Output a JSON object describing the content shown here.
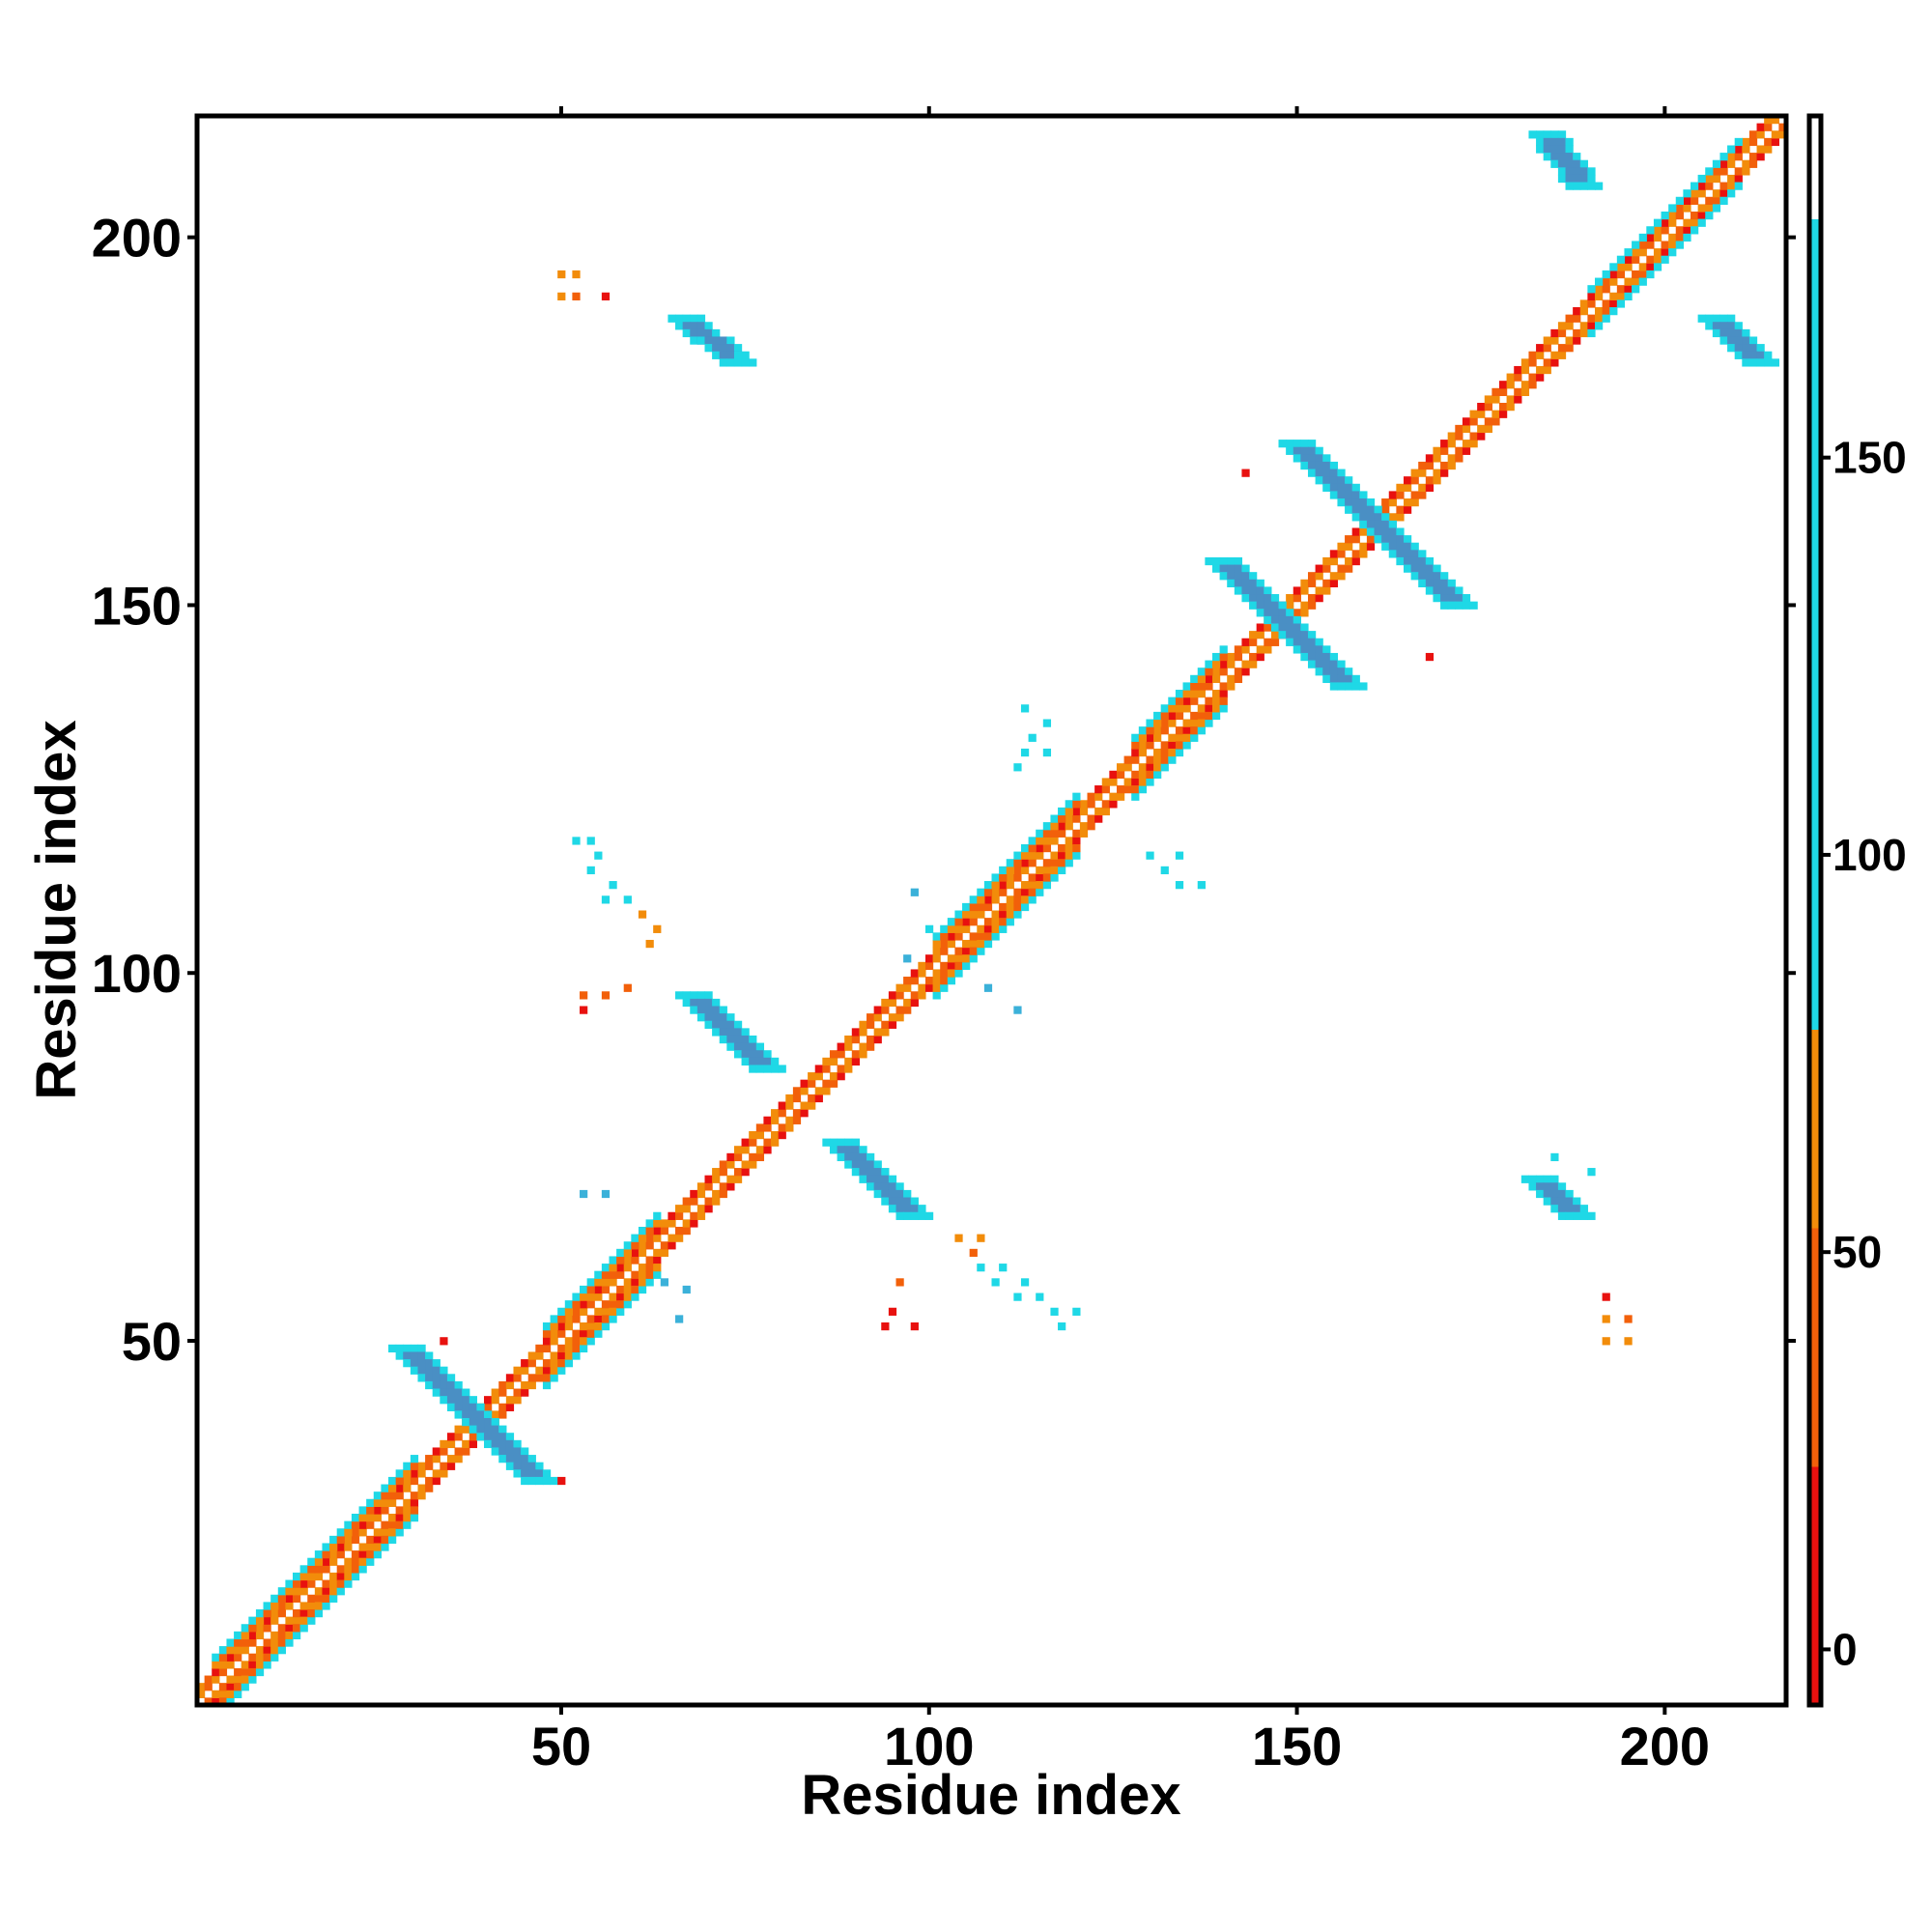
{
  "chart_data": {
    "type": "heatmap",
    "title": "",
    "xlabel": "Residue index",
    "ylabel": "Residue index",
    "xlim": [
      1,
      216
    ],
    "ylim": [
      1,
      216
    ],
    "x_ticks": [
      50,
      100,
      150,
      200
    ],
    "y_ticks": [
      50,
      100,
      150,
      200
    ],
    "x_tick_labels": [
      "50",
      "100",
      "150",
      "200"
    ],
    "y_tick_labels": [
      "50",
      "100",
      "150",
      "200"
    ],
    "colorbar": {
      "ticks": [
        0,
        50,
        100,
        150
      ],
      "tick_labels": [
        "0",
        "50",
        "100",
        "150"
      ],
      "range": [
        -7,
        193
      ],
      "bands": [
        {
          "from": -7,
          "to": 23,
          "color": "#e8110f"
        },
        {
          "from": 23,
          "to": 53,
          "color": "#f2600a"
        },
        {
          "from": 53,
          "to": 78,
          "color": "#f28c0a"
        },
        {
          "from": 78,
          "to": 180,
          "color": "#1fd8e6"
        },
        {
          "from": 180,
          "to": 193,
          "color": "#ffffff"
        }
      ],
      "gradient_colors": [
        "#e8110f",
        "#f2600a",
        "#f28c0a",
        "#1fd8e6",
        "#22c6e0",
        "#3bb1d9",
        "#4a8fc4",
        "#ffffff"
      ]
    },
    "colors": {
      "red": "#e8110f",
      "red_orange": "#f2600a",
      "orange": "#f28c0a",
      "cyan": "#1fd8e6",
      "steel_blue": "#4a8fc4"
    },
    "diagonal_band": {
      "start": 1,
      "end": 216,
      "half_width": 1.5
    },
    "helix_segments": [
      {
        "start": 3,
        "end": 30,
        "half_width": 3.5
      },
      {
        "start": 48,
        "end": 63,
        "half_width": 4
      },
      {
        "start": 101,
        "end": 120,
        "half_width": 4
      },
      {
        "start": 128,
        "end": 140,
        "half_width": 3.5
      },
      {
        "start": 190,
        "end": 210,
        "half_width": 3
      }
    ],
    "sheet_pairs": [
      {
        "x": [
          29,
          47
        ],
        "y": [
          49,
          31
        ],
        "half_width": 1.6,
        "color": "#4a8fc4",
        "edge_color": "#1fd8e6"
      },
      {
        "x": [
          68,
          78
        ],
        "y": [
          97,
          87
        ],
        "half_width": 1.6,
        "color": "#4a8fc4",
        "edge_color": "#1fd8e6"
      },
      {
        "x": [
          88,
          98
        ],
        "y": [
          77,
          67
        ],
        "half_width": 1.6,
        "color": "#4a8fc4",
        "edge_color": "#1fd8e6"
      },
      {
        "x": [
          140,
          157
        ],
        "y": [
          156,
          139
        ],
        "half_width": 1.6,
        "color": "#4a8fc4",
        "edge_color": "#1fd8e6"
      },
      {
        "x": [
          150,
          172
        ],
        "y": [
          172,
          150
        ],
        "half_width": 1.6,
        "color": "#4a8fc4",
        "edge_color": "#1fd8e6"
      },
      {
        "x": [
          67,
          74
        ],
        "y": [
          189,
          183
        ],
        "half_width": 1.4,
        "color": "#4a8fc4",
        "edge_color": "#1fd8e6"
      },
      {
        "x": [
          183,
          188
        ],
        "y": [
          72,
          67
        ],
        "half_width": 1.4,
        "color": "#4a8fc4",
        "edge_color": "#1fd8e6"
      },
      {
        "x": [
          184,
          189
        ],
        "y": [
          214,
          207
        ],
        "half_width": 1.4,
        "color": "#4a8fc4",
        "edge_color": "#1fd8e6"
      },
      {
        "x": [
          207,
          213
        ],
        "y": [
          189,
          183
        ],
        "half_width": 1.4,
        "color": "#4a8fc4",
        "edge_color": "#1fd8e6"
      }
    ],
    "scattered_contacts": [
      {
        "x": 50,
        "y": 195,
        "color": "#f28c0a"
      },
      {
        "x": 52,
        "y": 195,
        "color": "#f28c0a"
      },
      {
        "x": 50,
        "y": 192,
        "color": "#f28c0a"
      },
      {
        "x": 52,
        "y": 192,
        "color": "#f2600a"
      },
      {
        "x": 56,
        "y": 192,
        "color": "#e8110f"
      },
      {
        "x": 34,
        "y": 50,
        "color": "#e8110f"
      },
      {
        "x": 50,
        "y": 31,
        "color": "#e8110f"
      },
      {
        "x": 52,
        "y": 118,
        "color": "#1fd8e6"
      },
      {
        "x": 54,
        "y": 118,
        "color": "#1fd8e6"
      },
      {
        "x": 55,
        "y": 116,
        "color": "#1fd8e6"
      },
      {
        "x": 54,
        "y": 114,
        "color": "#1fd8e6"
      },
      {
        "x": 57,
        "y": 112,
        "color": "#1fd8e6"
      },
      {
        "x": 56,
        "y": 110,
        "color": "#1fd8e6"
      },
      {
        "x": 59,
        "y": 110,
        "color": "#1fd8e6"
      },
      {
        "x": 61,
        "y": 108,
        "color": "#f28c0a"
      },
      {
        "x": 63,
        "y": 106,
        "color": "#f28c0a"
      },
      {
        "x": 62,
        "y": 104,
        "color": "#f28c0a"
      },
      {
        "x": 53,
        "y": 97,
        "color": "#f2600a"
      },
      {
        "x": 56,
        "y": 97,
        "color": "#f2600a"
      },
      {
        "x": 59,
        "y": 98,
        "color": "#f2600a"
      },
      {
        "x": 53,
        "y": 95,
        "color": "#e8110f"
      },
      {
        "x": 53,
        "y": 70,
        "color": "#3bb1d9"
      },
      {
        "x": 56,
        "y": 70,
        "color": "#3bb1d9"
      },
      {
        "x": 64,
        "y": 58,
        "color": "#3bb1d9"
      },
      {
        "x": 67,
        "y": 57,
        "color": "#3bb1d9"
      },
      {
        "x": 66,
        "y": 53,
        "color": "#3bb1d9"
      },
      {
        "x": 104,
        "y": 64,
        "color": "#f28c0a"
      },
      {
        "x": 107,
        "y": 64,
        "color": "#f28c0a"
      },
      {
        "x": 106,
        "y": 62,
        "color": "#f2600a"
      },
      {
        "x": 107,
        "y": 60,
        "color": "#1fd8e6"
      },
      {
        "x": 110,
        "y": 60,
        "color": "#1fd8e6"
      },
      {
        "x": 109,
        "y": 58,
        "color": "#1fd8e6"
      },
      {
        "x": 113,
        "y": 58,
        "color": "#1fd8e6"
      },
      {
        "x": 112,
        "y": 56,
        "color": "#1fd8e6"
      },
      {
        "x": 115,
        "y": 56,
        "color": "#1fd8e6"
      },
      {
        "x": 117,
        "y": 54,
        "color": "#1fd8e6"
      },
      {
        "x": 120,
        "y": 54,
        "color": "#1fd8e6"
      },
      {
        "x": 118,
        "y": 52,
        "color": "#1fd8e6"
      },
      {
        "x": 96,
        "y": 58,
        "color": "#f2600a"
      },
      {
        "x": 95,
        "y": 54,
        "color": "#e8110f"
      },
      {
        "x": 98,
        "y": 52,
        "color": "#e8110f"
      },
      {
        "x": 94,
        "y": 52,
        "color": "#e8110f"
      },
      {
        "x": 112,
        "y": 128,
        "color": "#1fd8e6"
      },
      {
        "x": 113,
        "y": 130,
        "color": "#1fd8e6"
      },
      {
        "x": 116,
        "y": 130,
        "color": "#1fd8e6"
      },
      {
        "x": 114,
        "y": 132,
        "color": "#1fd8e6"
      },
      {
        "x": 116,
        "y": 134,
        "color": "#1fd8e6"
      },
      {
        "x": 113,
        "y": 136,
        "color": "#1fd8e6"
      },
      {
        "x": 130,
        "y": 116,
        "color": "#1fd8e6"
      },
      {
        "x": 134,
        "y": 116,
        "color": "#1fd8e6"
      },
      {
        "x": 132,
        "y": 114,
        "color": "#1fd8e6"
      },
      {
        "x": 134,
        "y": 112,
        "color": "#1fd8e6"
      },
      {
        "x": 137,
        "y": 112,
        "color": "#1fd8e6"
      },
      {
        "x": 98,
        "y": 111,
        "color": "#3bb1d9"
      },
      {
        "x": 100,
        "y": 106,
        "color": "#1fd8e6"
      },
      {
        "x": 97,
        "y": 102,
        "color": "#3bb1d9"
      },
      {
        "x": 108,
        "y": 98,
        "color": "#3bb1d9"
      },
      {
        "x": 112,
        "y": 95,
        "color": "#3bb1d9"
      },
      {
        "x": 143,
        "y": 168,
        "color": "#e8110f"
      },
      {
        "x": 168,
        "y": 143,
        "color": "#e8110f"
      },
      {
        "x": 185,
        "y": 75,
        "color": "#1fd8e6"
      },
      {
        "x": 190,
        "y": 73,
        "color": "#1fd8e6"
      },
      {
        "x": 192,
        "y": 56,
        "color": "#e8110f"
      },
      {
        "x": 192,
        "y": 53,
        "color": "#f28c0a"
      },
      {
        "x": 195,
        "y": 53,
        "color": "#f2600a"
      },
      {
        "x": 192,
        "y": 50,
        "color": "#f28c0a"
      },
      {
        "x": 195,
        "y": 50,
        "color": "#f28c0a"
      },
      {
        "x": 74,
        "y": 184,
        "color": "#1fd8e6"
      }
    ]
  }
}
